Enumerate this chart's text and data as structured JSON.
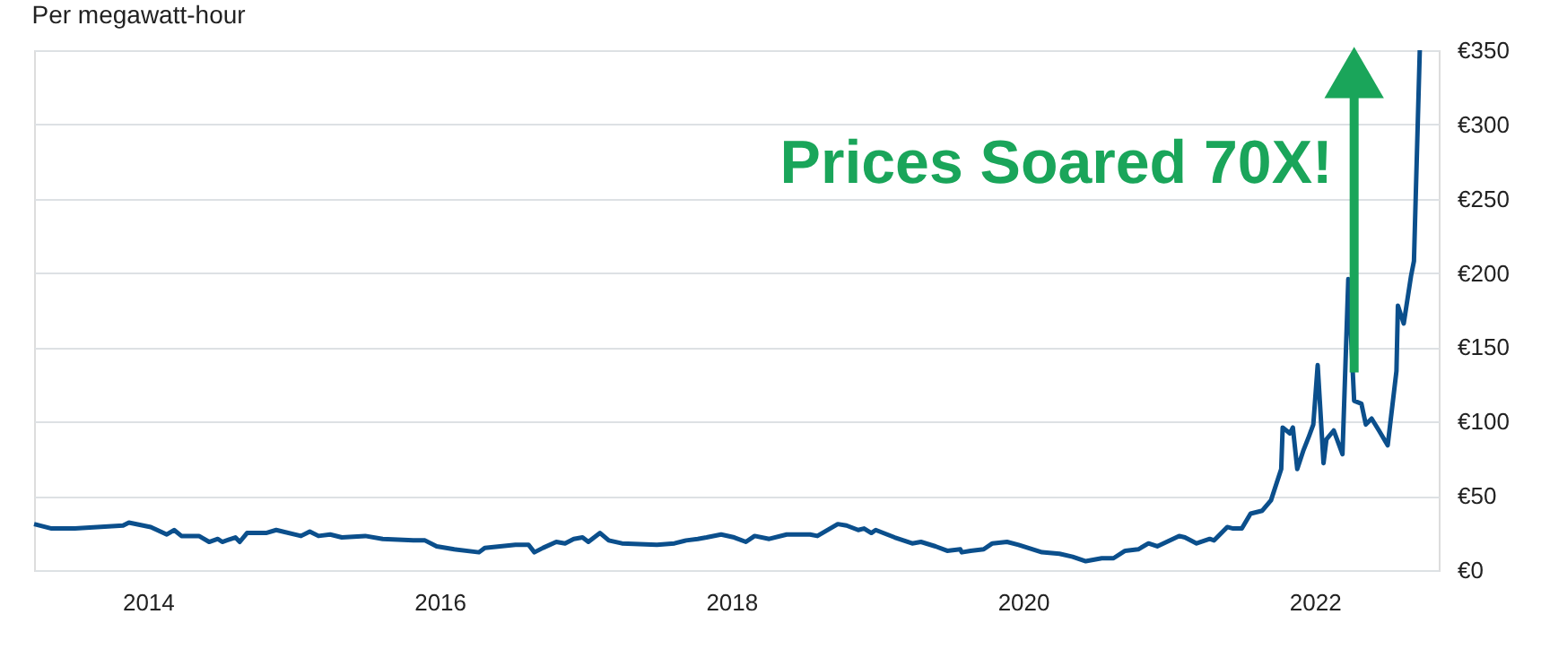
{
  "chart_data": {
    "type": "line",
    "subtitle": "Per megawatt-hour",
    "x": [
      2013.22,
      2013.34,
      2013.5,
      2013.83,
      2013.87,
      2014.02,
      2014.13,
      2014.18,
      2014.23,
      2014.35,
      2014.42,
      2014.48,
      2014.51,
      2014.6,
      2014.63,
      2014.68,
      2014.81,
      2014.88,
      2015.05,
      2015.11,
      2015.17,
      2015.25,
      2015.33,
      2015.49,
      2015.61,
      2015.82,
      2015.9,
      2015.98,
      2016.1,
      2016.27,
      2016.31,
      2016.52,
      2016.61,
      2016.65,
      2016.71,
      2016.8,
      2016.86,
      2016.92,
      2016.98,
      2017.02,
      2017.1,
      2017.16,
      2017.25,
      2017.49,
      2017.61,
      2017.69,
      2017.77,
      2017.83,
      2017.93,
      2018.02,
      2018.1,
      2018.16,
      2018.26,
      2018.38,
      2018.54,
      2018.59,
      2018.73,
      2018.79,
      2018.87,
      2018.91,
      2018.96,
      2018.99,
      2019.12,
      2019.24,
      2019.3,
      2019.4,
      2019.48,
      2019.57,
      2019.58,
      2019.64,
      2019.73,
      2019.79,
      2019.89,
      2019.97,
      2020.13,
      2020.25,
      2020.34,
      2020.43,
      2020.54,
      2020.62,
      2020.7,
      2020.79,
      2020.86,
      2020.92,
      2021.07,
      2021.11,
      2021.19,
      2021.28,
      2021.31,
      2021.4,
      2021.44,
      2021.5,
      2021.56,
      2021.64,
      2021.7,
      2021.77,
      2021.78,
      2021.83,
      2021.85,
      2021.88,
      2021.92,
      2021.96,
      2021.99,
      2022.02,
      2022.06,
      2022.08,
      2022.13,
      2022.19,
      2022.23,
      2022.27,
      2022.32,
      2022.35,
      2022.39,
      2022.44,
      2022.5,
      2022.56,
      2022.57,
      2022.61,
      2022.66,
      2022.68,
      2022.72
    ],
    "series": [
      {
        "color": "#0b4f8c",
        "values": [
          31,
          28,
          28,
          30,
          32,
          29,
          24,
          27,
          23,
          23,
          19,
          21,
          19,
          22,
          19,
          25,
          25,
          27,
          23,
          26,
          23,
          24,
          22,
          23,
          21,
          20,
          20,
          16,
          14,
          12,
          15,
          17,
          17,
          12,
          15,
          19,
          18,
          21,
          22,
          19,
          25,
          20,
          18,
          17,
          18,
          20,
          21,
          22,
          24,
          22,
          19,
          23,
          21,
          24,
          24,
          23,
          31,
          30,
          27,
          28,
          25,
          27,
          22,
          18,
          19,
          16,
          13,
          14,
          12,
          13,
          14,
          18,
          19,
          17,
          12,
          11,
          9,
          6,
          8,
          8,
          13,
          14,
          18,
          16,
          23,
          22,
          18,
          21,
          20,
          29,
          28,
          28,
          38,
          40,
          47,
          68,
          96,
          92,
          96,
          68,
          80,
          90,
          98,
          138,
          72,
          88,
          94,
          78,
          196,
          114,
          112,
          98,
          102,
          94,
          84,
          134,
          178,
          166,
          198,
          208,
          350
        ]
      }
    ],
    "xlim": [
      2013.22,
      2022.85
    ],
    "xticks": [
      2014,
      2016,
      2018,
      2020,
      2022
    ],
    "ylim": [
      0,
      350
    ],
    "yticks": [
      {
        "value": 0,
        "label": "€0"
      },
      {
        "value": 50,
        "label": "€50"
      },
      {
        "value": 100,
        "label": "€100"
      },
      {
        "value": 150,
        "label": "€150"
      },
      {
        "value": 200,
        "label": "€200"
      },
      {
        "value": 250,
        "label": "€250"
      },
      {
        "value": 300,
        "label": "€300"
      },
      {
        "value": 350,
        "label": "€350"
      }
    ],
    "grid": "y",
    "marker": "none",
    "line_style": "solid",
    "annotations": [
      {
        "text": "Prices Soared 70X!",
        "x": 2022.27,
        "y": 335
      }
    ]
  }
}
